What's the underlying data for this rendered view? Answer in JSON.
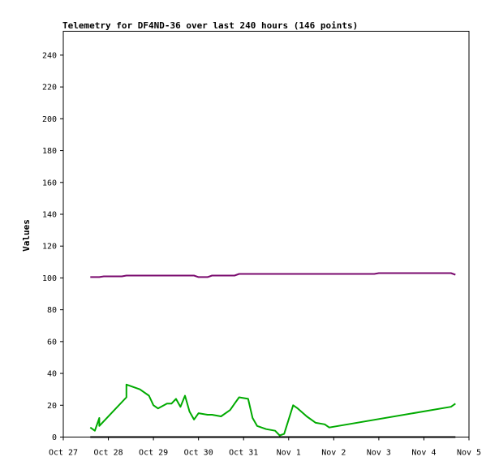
{
  "chart_data": {
    "type": "line",
    "title": "Telemetry for DF4ND-36 over last 240 hours (146 points)",
    "xlabel": "",
    "ylabel": "Values",
    "x_unit": "date",
    "xlim": [
      "Oct 27 00:00",
      "Nov 5 00:00"
    ],
    "ylim": [
      0,
      255
    ],
    "x_ticks": [
      "Oct 27",
      "Oct 28",
      "Oct 29",
      "Oct 30",
      "Oct 31",
      "Nov 1",
      "Nov 2",
      "Nov 3",
      "Nov 4",
      "Nov 5"
    ],
    "y_ticks": [
      0,
      20,
      40,
      60,
      80,
      100,
      120,
      140,
      160,
      180,
      200,
      220,
      240
    ],
    "grid": false,
    "series": [
      {
        "color": "#7a0a6e",
        "points": [
          [
            "Oct 27 14:24",
            100.5
          ],
          [
            "Oct 27 19:12",
            100.5
          ],
          [
            "Oct 27 21:36",
            101.0
          ],
          [
            "Oct 28 07:12",
            101.0
          ],
          [
            "Oct 28 09:36",
            101.5
          ],
          [
            "Oct 28 14:24",
            101.5
          ],
          [
            "Oct 29 12:00",
            101.5
          ],
          [
            "Oct 29 21:36",
            101.5
          ],
          [
            "Oct 30 00:00",
            100.5
          ],
          [
            "Oct 30 04:48",
            100.5
          ],
          [
            "Oct 30 07:12",
            101.5
          ],
          [
            "Oct 30 19:12",
            101.5
          ],
          [
            "Oct 30 21:36",
            102.5
          ],
          [
            "Nov 2 21:36",
            102.5
          ],
          [
            "Nov 3 00:00",
            103.0
          ],
          [
            "Nov 4 14:24",
            103.0
          ],
          [
            "Nov 4 16:48",
            102.0
          ]
        ]
      },
      {
        "color": "#00aa00",
        "points": [
          [
            "Oct 27 14:24",
            6
          ],
          [
            "Oct 27 16:48",
            4
          ],
          [
            "Oct 27 19:12",
            12
          ],
          [
            "Oct 27 19:12",
            7
          ],
          [
            "Oct 28 09:36",
            25
          ],
          [
            "Oct 28 09:36",
            33
          ],
          [
            "Oct 28 16:48",
            30
          ],
          [
            "Oct 28 21:36",
            26
          ],
          [
            "Oct 29 00:00",
            20
          ],
          [
            "Oct 29 02:24",
            18
          ],
          [
            "Oct 29 07:12",
            21
          ],
          [
            "Oct 29 09:36",
            21
          ],
          [
            "Oct 29 12:00",
            24
          ],
          [
            "Oct 29 14:24",
            19
          ],
          [
            "Oct 29 16:48",
            26
          ],
          [
            "Oct 29 19:12",
            16
          ],
          [
            "Oct 29 21:36",
            11
          ],
          [
            "Oct 30 00:00",
            15
          ],
          [
            "Oct 30 04:48",
            14
          ],
          [
            "Oct 30 07:12",
            14
          ],
          [
            "Oct 30 12:00",
            13
          ],
          [
            "Oct 30 16:48",
            17
          ],
          [
            "Oct 30 19:12",
            21
          ],
          [
            "Oct 30 21:36",
            25
          ],
          [
            "Oct 31 02:24",
            24
          ],
          [
            "Oct 31 04:48",
            12
          ],
          [
            "Oct 31 07:12",
            7
          ],
          [
            "Oct 31 12:00",
            5
          ],
          [
            "Oct 31 16:48",
            4
          ],
          [
            "Oct 31 19:12",
            1
          ],
          [
            "Oct 31 21:36",
            2
          ],
          [
            "Nov 1 02:24",
            20
          ],
          [
            "Nov 1 04:48",
            18
          ],
          [
            "Nov 1 09:36",
            13
          ],
          [
            "Nov 1 14:24",
            9
          ],
          [
            "Nov 1 19:12",
            8
          ],
          [
            "Nov 1 21:36",
            6
          ],
          [
            "Nov 4 14:24",
            19
          ],
          [
            "Nov 4 16:48",
            21
          ]
        ]
      },
      {
        "color": "#000000",
        "points": [
          [
            "Oct 27 14:24",
            0
          ],
          [
            "Nov 4 16:48",
            0
          ]
        ]
      }
    ]
  }
}
